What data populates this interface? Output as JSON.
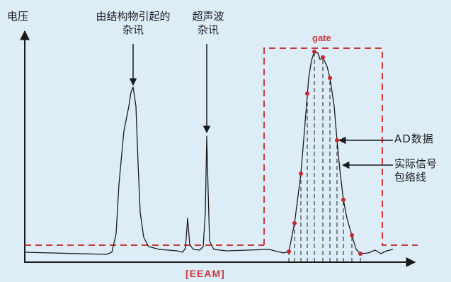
{
  "labels": {
    "y_axis": "电压",
    "structural_noise": [
      "由结构物引起的",
      "杂讯"
    ],
    "ultrasonic_noise": [
      "超声波",
      "杂讯"
    ],
    "gate": "gate",
    "ad_data": "AD数据",
    "envelope": [
      "实际信号",
      "包络线"
    ],
    "x_axis": "[EEAM]"
  },
  "colors": {
    "background": "#ddedf8",
    "gate_dashed": "#c9393a",
    "sample_dot": "#c4282a",
    "signal_line": "#1a1a1a"
  }
}
